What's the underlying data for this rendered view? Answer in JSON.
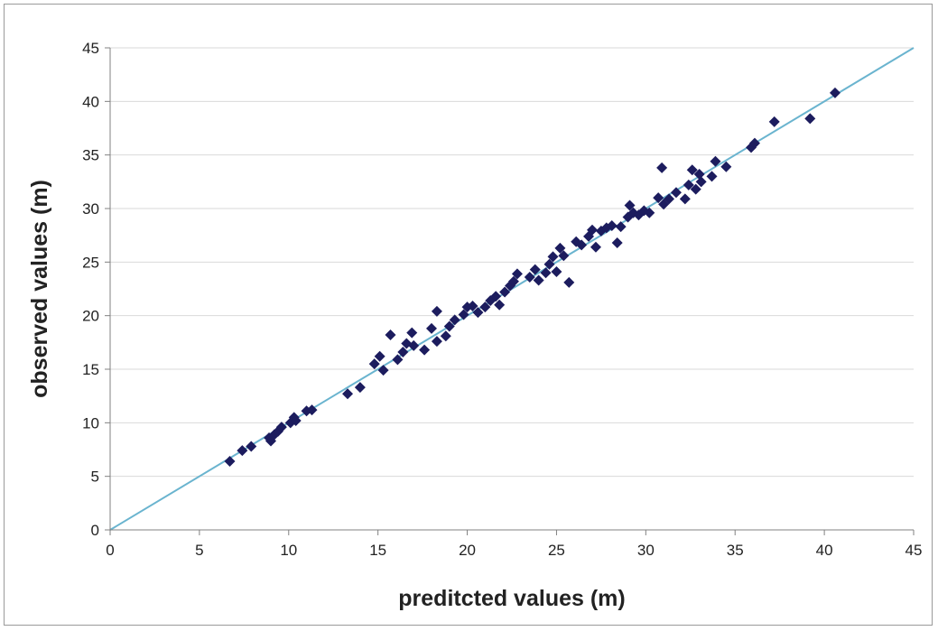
{
  "chart_data": {
    "type": "scatter",
    "title": "",
    "xlabel": "preditcted values (m)",
    "ylabel": "observed values (m)",
    "xlim": [
      0,
      45
    ],
    "ylim": [
      0,
      45
    ],
    "x_ticks": [
      0,
      5,
      10,
      15,
      20,
      25,
      30,
      35,
      40,
      45
    ],
    "y_ticks": [
      0,
      5,
      10,
      15,
      20,
      25,
      30,
      35,
      40,
      45
    ],
    "grid": "horizontal",
    "legend": "none",
    "colors": {
      "points": "#1c1c5e",
      "line": "#6ab4cf",
      "grid": "#d9d9d9",
      "axis": "#808080"
    },
    "reference_line": {
      "from": [
        0,
        0
      ],
      "to": [
        45,
        45
      ]
    },
    "series": [
      {
        "points": [
          [
            6.7,
            6.4
          ],
          [
            7.4,
            7.4
          ],
          [
            7.9,
            7.8
          ],
          [
            8.9,
            8.6
          ],
          [
            9.2,
            8.9
          ],
          [
            9.4,
            9.2
          ],
          [
            9.0,
            8.3
          ],
          [
            9.6,
            9.6
          ],
          [
            10.1,
            10.0
          ],
          [
            10.3,
            10.5
          ],
          [
            10.4,
            10.2
          ],
          [
            11.0,
            11.1
          ],
          [
            11.3,
            11.2
          ],
          [
            13.3,
            12.7
          ],
          [
            14.0,
            13.3
          ],
          [
            14.8,
            15.5
          ],
          [
            15.1,
            16.2
          ],
          [
            15.3,
            14.9
          ],
          [
            15.7,
            18.2
          ],
          [
            16.1,
            15.9
          ],
          [
            16.4,
            16.6
          ],
          [
            16.6,
            17.4
          ],
          [
            16.9,
            18.4
          ],
          [
            17.0,
            17.2
          ],
          [
            17.6,
            16.8
          ],
          [
            18.0,
            18.8
          ],
          [
            18.3,
            17.6
          ],
          [
            18.3,
            20.4
          ],
          [
            18.8,
            18.1
          ],
          [
            19.0,
            19.0
          ],
          [
            19.3,
            19.6
          ],
          [
            19.8,
            20.1
          ],
          [
            20.0,
            20.8
          ],
          [
            20.3,
            20.9
          ],
          [
            20.6,
            20.3
          ],
          [
            21.0,
            20.8
          ],
          [
            21.3,
            21.4
          ],
          [
            21.6,
            21.8
          ],
          [
            21.8,
            21.0
          ],
          [
            22.1,
            22.2
          ],
          [
            22.4,
            22.8
          ],
          [
            22.6,
            23.2
          ],
          [
            22.8,
            23.9
          ],
          [
            23.5,
            23.6
          ],
          [
            23.8,
            24.3
          ],
          [
            24.0,
            23.3
          ],
          [
            24.4,
            24.0
          ],
          [
            24.6,
            24.8
          ],
          [
            24.8,
            25.5
          ],
          [
            25.0,
            24.1
          ],
          [
            25.2,
            26.3
          ],
          [
            25.4,
            25.6
          ],
          [
            25.7,
            23.1
          ],
          [
            26.1,
            26.9
          ],
          [
            26.4,
            26.6
          ],
          [
            26.8,
            27.4
          ],
          [
            27.0,
            28.0
          ],
          [
            27.2,
            26.4
          ],
          [
            27.5,
            27.9
          ],
          [
            27.8,
            28.2
          ],
          [
            28.1,
            28.4
          ],
          [
            28.4,
            26.8
          ],
          [
            28.6,
            28.3
          ],
          [
            29.0,
            29.2
          ],
          [
            29.1,
            30.3
          ],
          [
            29.3,
            29.6
          ],
          [
            29.6,
            29.4
          ],
          [
            29.9,
            29.8
          ],
          [
            30.2,
            29.6
          ],
          [
            30.7,
            31.0
          ],
          [
            30.9,
            33.8
          ],
          [
            31.0,
            30.4
          ],
          [
            31.3,
            30.9
          ],
          [
            31.7,
            31.5
          ],
          [
            32.2,
            30.9
          ],
          [
            32.4,
            32.2
          ],
          [
            32.6,
            33.6
          ],
          [
            32.8,
            31.8
          ],
          [
            33.0,
            33.2
          ],
          [
            33.1,
            32.5
          ],
          [
            33.7,
            33.0
          ],
          [
            33.9,
            34.4
          ],
          [
            34.5,
            33.9
          ],
          [
            35.9,
            35.7
          ],
          [
            36.1,
            36.1
          ],
          [
            37.2,
            38.1
          ],
          [
            39.2,
            38.4
          ],
          [
            40.6,
            40.8
          ]
        ]
      }
    ]
  }
}
